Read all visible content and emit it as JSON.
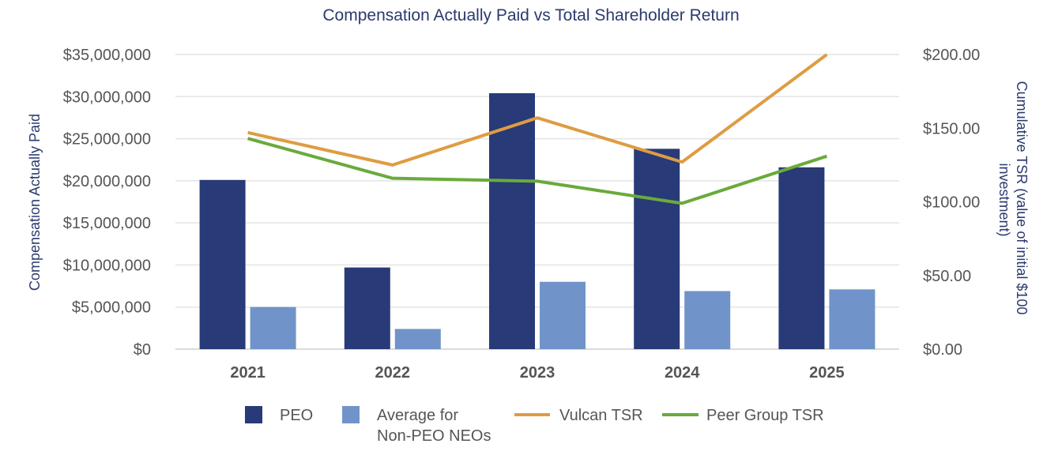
{
  "chart_data": {
    "type": "bar",
    "title": "Compensation Actually Paid vs Total Shareholder Return",
    "categories": [
      "2021",
      "2022",
      "2023",
      "2024",
      "2025"
    ],
    "ylabel": "Compensation Actually Paid",
    "y2label_lines": [
      "Cumulative TSR (value of initial $100",
      "investment)"
    ],
    "ylim": [
      0,
      35000000
    ],
    "y2lim": [
      0,
      200
    ],
    "yticks": [
      0,
      5000000,
      10000000,
      15000000,
      20000000,
      25000000,
      30000000,
      35000000
    ],
    "yticklabels": [
      "$0",
      "$5,000,000",
      "$10,000,000",
      "$15,000,000",
      "$20,000,000",
      "$25,000,000",
      "$30,000,000",
      "$35,000,000"
    ],
    "y2ticks": [
      0,
      50,
      100,
      150,
      200
    ],
    "y2ticklabels": [
      "$0.00",
      "$50.00",
      "$100.00",
      "$150.00",
      "$200.00"
    ],
    "series": [
      {
        "name": "PEO",
        "kind": "bar",
        "axis": "left",
        "color": "#283a77",
        "values": [
          20100000,
          9700000,
          30400000,
          23800000,
          21600000
        ]
      },
      {
        "name": "Average for Non-PEO NEOs",
        "legend_lines": [
          "Average for",
          "Non-PEO NEOs"
        ],
        "kind": "bar",
        "axis": "left",
        "color": "#7094c9",
        "values": [
          5000000,
          2400000,
          8000000,
          6900000,
          7100000
        ]
      },
      {
        "name": "Vulcan TSR",
        "kind": "line",
        "axis": "right",
        "color": "#de9c42",
        "values": [
          147,
          125,
          157,
          127,
          200
        ]
      },
      {
        "name": "Peer Group TSR",
        "kind": "line",
        "axis": "right",
        "color": "#6aaa3c",
        "values": [
          143,
          116,
          114,
          99,
          131
        ]
      }
    ],
    "legend_position": "bottom",
    "grid": true
  }
}
